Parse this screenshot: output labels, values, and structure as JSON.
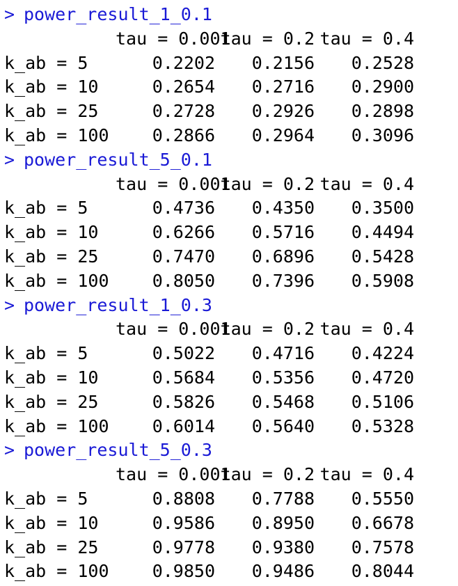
{
  "console": {
    "prompt": ">",
    "column_headers": [
      "tau = 0.001",
      "tau = 0.2",
      "tau = 0.4"
    ],
    "blocks": [
      {
        "command": "power_result_1_0.1",
        "rows": [
          {
            "label": "k_ab = 5",
            "values": [
              "0.2202",
              "0.2156",
              "0.2528"
            ]
          },
          {
            "label": "k_ab = 10",
            "values": [
              "0.2654",
              "0.2716",
              "0.2900"
            ]
          },
          {
            "label": "k_ab = 25",
            "values": [
              "0.2728",
              "0.2926",
              "0.2898"
            ]
          },
          {
            "label": "k_ab = 100",
            "values": [
              "0.2866",
              "0.2964",
              "0.3096"
            ]
          }
        ]
      },
      {
        "command": "power_result_5_0.1",
        "rows": [
          {
            "label": "k_ab = 5",
            "values": [
              "0.4736",
              "0.4350",
              "0.3500"
            ]
          },
          {
            "label": "k_ab = 10",
            "values": [
              "0.6266",
              "0.5716",
              "0.4494"
            ]
          },
          {
            "label": "k_ab = 25",
            "values": [
              "0.7470",
              "0.6896",
              "0.5428"
            ]
          },
          {
            "label": "k_ab = 100",
            "values": [
              "0.8050",
              "0.7396",
              "0.5908"
            ]
          }
        ]
      },
      {
        "command": "power_result_1_0.3",
        "rows": [
          {
            "label": "k_ab = 5",
            "values": [
              "0.5022",
              "0.4716",
              "0.4224"
            ]
          },
          {
            "label": "k_ab = 10",
            "values": [
              "0.5684",
              "0.5356",
              "0.4720"
            ]
          },
          {
            "label": "k_ab = 25",
            "values": [
              "0.5826",
              "0.5468",
              "0.5106"
            ]
          },
          {
            "label": "k_ab = 100",
            "values": [
              "0.6014",
              "0.5640",
              "0.5328"
            ]
          }
        ]
      },
      {
        "command": "power_result_5_0.3",
        "rows": [
          {
            "label": "k_ab = 5",
            "values": [
              "0.8808",
              "0.7788",
              "0.5550"
            ]
          },
          {
            "label": "k_ab = 10",
            "values": [
              "0.9586",
              "0.8950",
              "0.6678"
            ]
          },
          {
            "label": "k_ab = 25",
            "values": [
              "0.9778",
              "0.9380",
              "0.7578"
            ]
          },
          {
            "label": "k_ab = 100",
            "values": [
              "0.9850",
              "0.9486",
              "0.8044"
            ]
          }
        ]
      }
    ]
  },
  "colors": {
    "command": "#1a1ad6",
    "output": "#000000",
    "background": "#ffffff"
  }
}
